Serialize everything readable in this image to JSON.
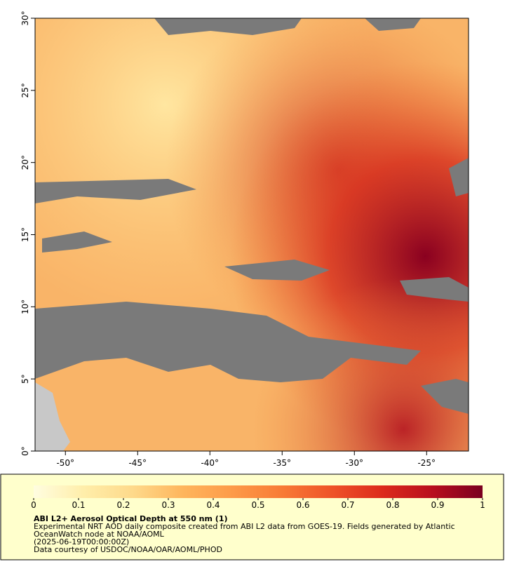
{
  "map": {
    "type": "map",
    "title": "ABI L2+ Aerosol Optical Depth at 550 nm (1)",
    "notes": [
      "Experimental NRT AOD daily composite created from ABI L2 data from GOES-19. Fields generated by Atlantic",
      "OceanWatch node at NOAA/AOML",
      "(2025-06-19T00:00:00Z)",
      "Data courtesy of USDOC/NOAA/OAR/AOML/PHOD"
    ],
    "xlim": [
      -52.1,
      -22.1
    ],
    "ylim": [
      0,
      30
    ],
    "xticks": [
      {
        "value": -50,
        "label": "-50°"
      },
      {
        "value": -45,
        "label": "-45°"
      },
      {
        "value": -40,
        "label": "-40°"
      },
      {
        "value": -35,
        "label": "-35°"
      },
      {
        "value": -30,
        "label": "-30°"
      },
      {
        "value": -25,
        "label": "-25°"
      }
    ],
    "yticks": [
      {
        "value": 0,
        "label": "0°"
      },
      {
        "value": 5,
        "label": "5°"
      },
      {
        "value": 10,
        "label": "10°"
      },
      {
        "value": 15,
        "label": "15°"
      },
      {
        "value": 20,
        "label": "20°"
      },
      {
        "value": 25,
        "label": "25°"
      },
      {
        "value": 30,
        "label": "30°"
      }
    ],
    "colorbar": {
      "lim": [
        0,
        1
      ],
      "ticks": [
        0,
        0.1,
        0.2,
        0.3,
        0.4,
        0.5,
        0.6,
        0.7,
        0.8,
        0.9,
        1
      ],
      "colors": [
        "#fffde0",
        "#ffeeaa",
        "#fed98a",
        "#feb55c",
        "#fd9a48",
        "#f87a35",
        "#ee5228",
        "#dc2a1c",
        "#b80e1e",
        "#7a0020"
      ]
    }
  }
}
